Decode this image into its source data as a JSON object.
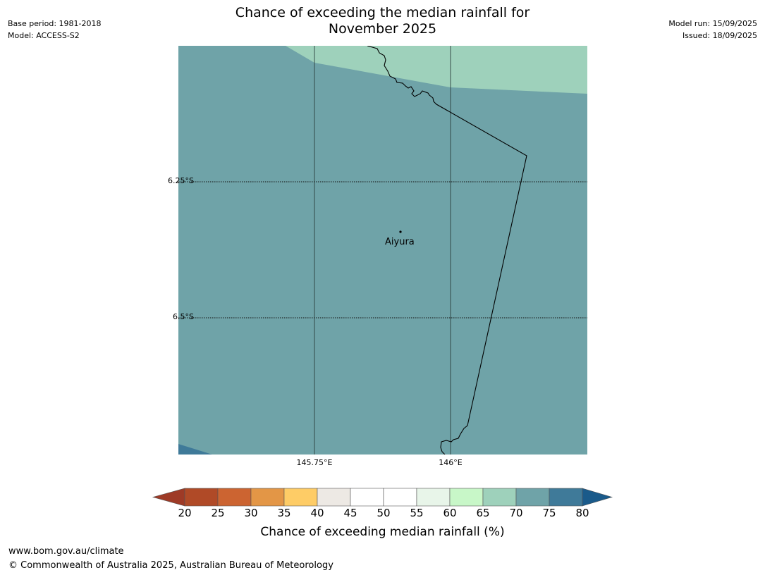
{
  "title_line1": "Chance of exceeding the median rainfall for",
  "title_line2": "November 2025",
  "meta": {
    "base_period": "Base period: 1981-2018",
    "model": "Model: ACCESS-S2",
    "model_run": "Model run: 15/09/2025",
    "issued": "Issued: 18/09/2025"
  },
  "map": {
    "place_label": "Aiyura",
    "lat_labels": [
      "6.25°S",
      "6.5°S"
    ],
    "lon_labels": [
      "145.75°E",
      "146°E"
    ]
  },
  "colorbar": {
    "title": "Chance of exceeding median rainfall (%)",
    "ticks": [
      "20",
      "25",
      "30",
      "35",
      "40",
      "45",
      "50",
      "55",
      "60",
      "65",
      "70",
      "75",
      "80"
    ],
    "under_color": "#9e3a26",
    "over_color": "#1a5a8a",
    "colors": [
      "#b04a27",
      "#cc6431",
      "#e39646",
      "#fecc66",
      "#ede9e4",
      "#ffffff",
      "#ffffff",
      "#e8f5e9",
      "#c8f7c8",
      "#9ed1bb",
      "#6fa3a8",
      "#3f7a99"
    ]
  },
  "footer": {
    "url": "www.bom.gov.au/climate",
    "copyright": "© Commonwealth of Australia 2025, Australian Bureau of Meteorology"
  }
}
